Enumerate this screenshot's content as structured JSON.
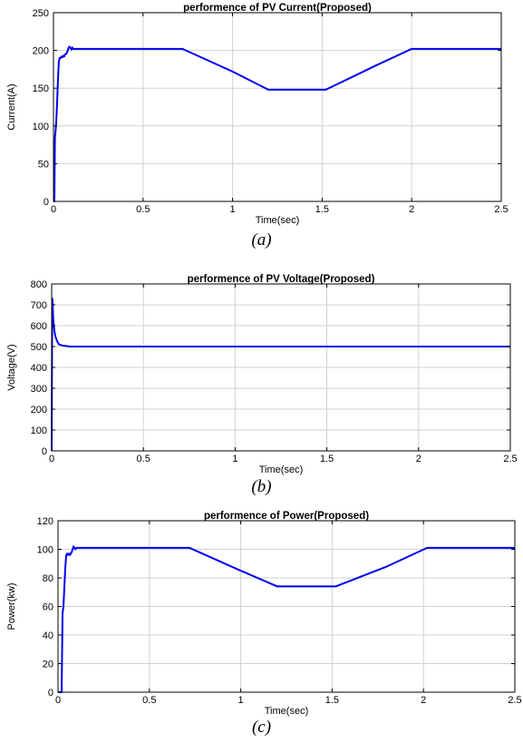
{
  "chart_data": [
    {
      "type": "line",
      "title": "performence of PV Current(Proposed)",
      "xlabel": "Time(sec)",
      "ylabel": "Current(A)",
      "xlim": [
        0,
        2.5
      ],
      "ylim": [
        0,
        250
      ],
      "xticks": [
        0,
        0.5,
        1,
        1.5,
        2,
        2.5
      ],
      "xtick_labels": [
        "0",
        "0.5",
        "1",
        "1.5",
        "2",
        "2.5"
      ],
      "yticks": [
        0,
        50,
        100,
        150,
        200,
        250
      ],
      "ytick_labels": [
        "0",
        "50",
        "100",
        "150",
        "200",
        "250"
      ],
      "grid": true,
      "caption": "(a)",
      "color": "#0000ee",
      "series": [
        {
          "x": [
            0,
            0.005,
            0.008,
            0.012,
            0.015,
            0.02,
            0.025,
            0.03,
            0.035,
            0.04,
            0.045,
            0.05,
            0.055,
            0.06,
            0.065,
            0.07,
            0.075,
            0.08,
            0.085,
            0.09,
            0.095,
            0.1,
            0.105,
            0.11,
            0.12,
            0.15,
            0.3,
            0.5,
            0.72,
            1.0,
            1.2,
            1.35,
            1.52,
            1.8,
            2.0,
            2.3,
            2.5
          ],
          "y": [
            0,
            0,
            85,
            95,
            105,
            130,
            160,
            185,
            190,
            190,
            192,
            191,
            193,
            192,
            195,
            195,
            197,
            200,
            204,
            205,
            203,
            201,
            204,
            202,
            202,
            202,
            202,
            202,
            202,
            172,
            148,
            148,
            148,
            180,
            202,
            202,
            202
          ]
        }
      ]
    },
    {
      "type": "line",
      "title": "performence of PV Voltage(Proposed)",
      "xlabel": "Time(sec)",
      "ylabel": "Voltage(V)",
      "xlim": [
        0,
        2.5
      ],
      "ylim": [
        0,
        800
      ],
      "xticks": [
        0,
        0.5,
        1,
        1.5,
        2,
        2.5
      ],
      "xtick_labels": [
        "0",
        "0.5",
        "1",
        "1.5",
        "2",
        "2.5"
      ],
      "yticks": [
        0,
        100,
        200,
        300,
        400,
        500,
        600,
        700,
        800
      ],
      "ytick_labels": [
        "0",
        "100",
        "200",
        "300",
        "400",
        "500",
        "600",
        "700",
        "800"
      ],
      "grid": true,
      "caption": "(b)",
      "color": "#0000ee",
      "series": [
        {
          "x": [
            0,
            0.003,
            0.005,
            0.008,
            0.012,
            0.016,
            0.02,
            0.03,
            0.04,
            0.06,
            0.08,
            0.1,
            0.5,
            1.0,
            1.5,
            2.0,
            2.5
          ],
          "y": [
            0,
            730,
            720,
            640,
            600,
            570,
            550,
            525,
            510,
            505,
            502,
            500,
            500,
            500,
            500,
            500,
            500
          ]
        }
      ]
    },
    {
      "type": "line",
      "title": "performence of Power(Proposed)",
      "xlabel": "Time(sec)",
      "ylabel": "Power(kw)",
      "xlim": [
        0,
        2.5
      ],
      "ylim": [
        0,
        120
      ],
      "xticks": [
        0,
        0.5,
        1,
        1.5,
        2,
        2.5
      ],
      "xtick_labels": [
        "0",
        "0.5",
        "1",
        "1.5",
        "2",
        "2.5"
      ],
      "yticks": [
        0,
        20,
        40,
        60,
        80,
        100,
        120
      ],
      "ytick_labels": [
        "0",
        "20",
        "40",
        "60",
        "80",
        "100",
        "120"
      ],
      "grid": true,
      "caption": "(c)",
      "color": "#0000ee",
      "series": [
        {
          "x": [
            0,
            0.01,
            0.02,
            0.025,
            0.03,
            0.035,
            0.04,
            0.045,
            0.05,
            0.055,
            0.06,
            0.065,
            0.07,
            0.075,
            0.08,
            0.085,
            0.09,
            0.095,
            0.1,
            0.105,
            0.11,
            0.12,
            0.15,
            0.4,
            0.72,
            1.0,
            1.2,
            1.35,
            1.52,
            1.8,
            2.02,
            2.3,
            2.5
          ],
          "y": [
            0,
            0,
            0,
            55,
            60,
            75,
            88,
            96,
            97,
            96,
            97,
            96,
            97,
            98,
            100,
            102,
            101,
            100,
            101,
            101,
            101,
            101,
            101,
            101,
            101,
            85,
            74,
            74,
            74,
            88,
            101,
            101,
            101
          ]
        }
      ]
    }
  ]
}
